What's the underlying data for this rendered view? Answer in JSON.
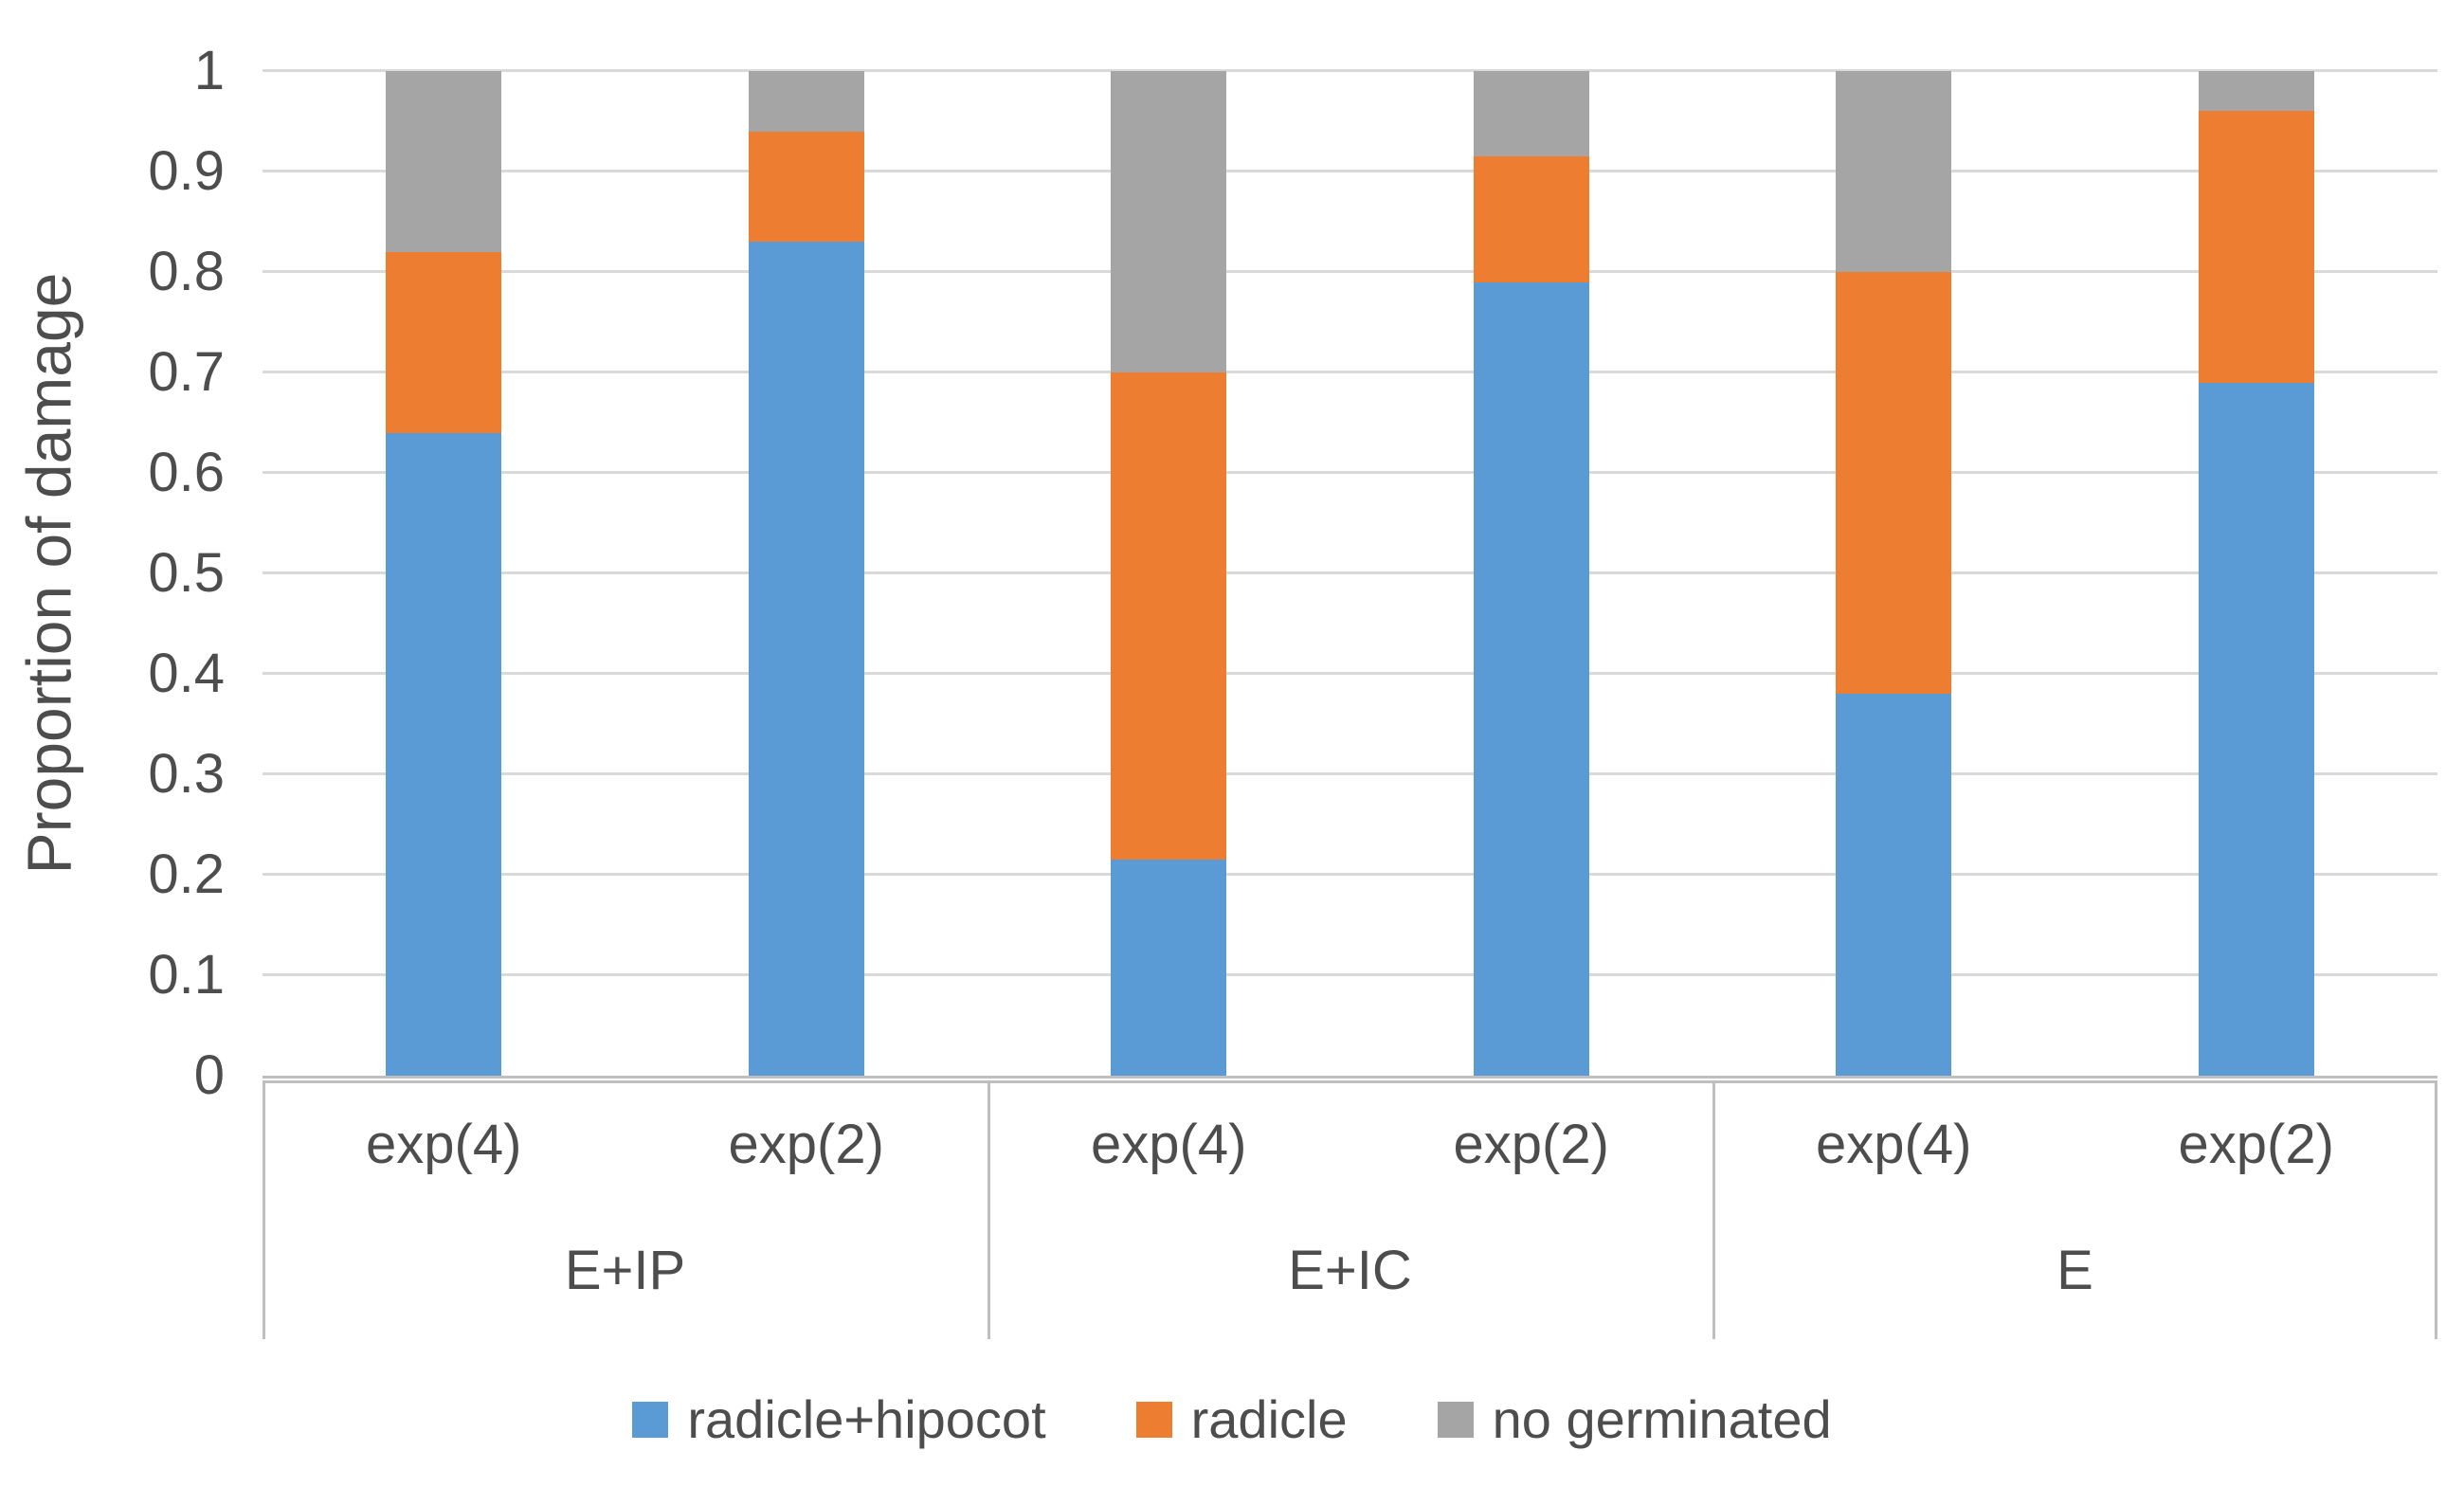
{
  "colors": {
    "background": "#FFFFFF",
    "gridline": "#D9D9D9",
    "axis_line": "#BFBFBF",
    "text": "#4D4D4D",
    "series_blue": "#5B9BD5",
    "series_orange": "#ED7D31",
    "series_gray": "#A5A5A5"
  },
  "chart_data": {
    "type": "bar",
    "stacked": true,
    "title": "",
    "xlabel": "",
    "ylabel": "Proportion of damage",
    "ylim": [
      0,
      1
    ],
    "ytick_step": 0.1,
    "yticks": [
      "0",
      "0.1",
      "0.2",
      "0.3",
      "0.4",
      "0.5",
      "0.6",
      "0.7",
      "0.8",
      "0.9",
      "1"
    ],
    "grid": true,
    "legend_position": "bottom",
    "groups": [
      "E+IP",
      "E+IC",
      "E"
    ],
    "subcategories": [
      "exp(4)",
      "exp(2)"
    ],
    "categories": [
      "E+IP exp(4)",
      "E+IP exp(2)",
      "E+IC exp(4)",
      "E+IC exp(2)",
      "E exp(4)",
      "E exp(2)"
    ],
    "series": [
      {
        "name": "radicle+hipocot",
        "color": "#5B9BD5",
        "values": [
          0.64,
          0.83,
          0.215,
          0.79,
          0.38,
          0.69
        ]
      },
      {
        "name": "radicle",
        "color": "#ED7D31",
        "values": [
          0.18,
          0.11,
          0.485,
          0.125,
          0.42,
          0.27
        ]
      },
      {
        "name": "no germinated",
        "color": "#A5A5A5",
        "values": [
          0.18,
          0.06,
          0.3,
          0.085,
          0.2,
          0.04
        ]
      }
    ]
  }
}
